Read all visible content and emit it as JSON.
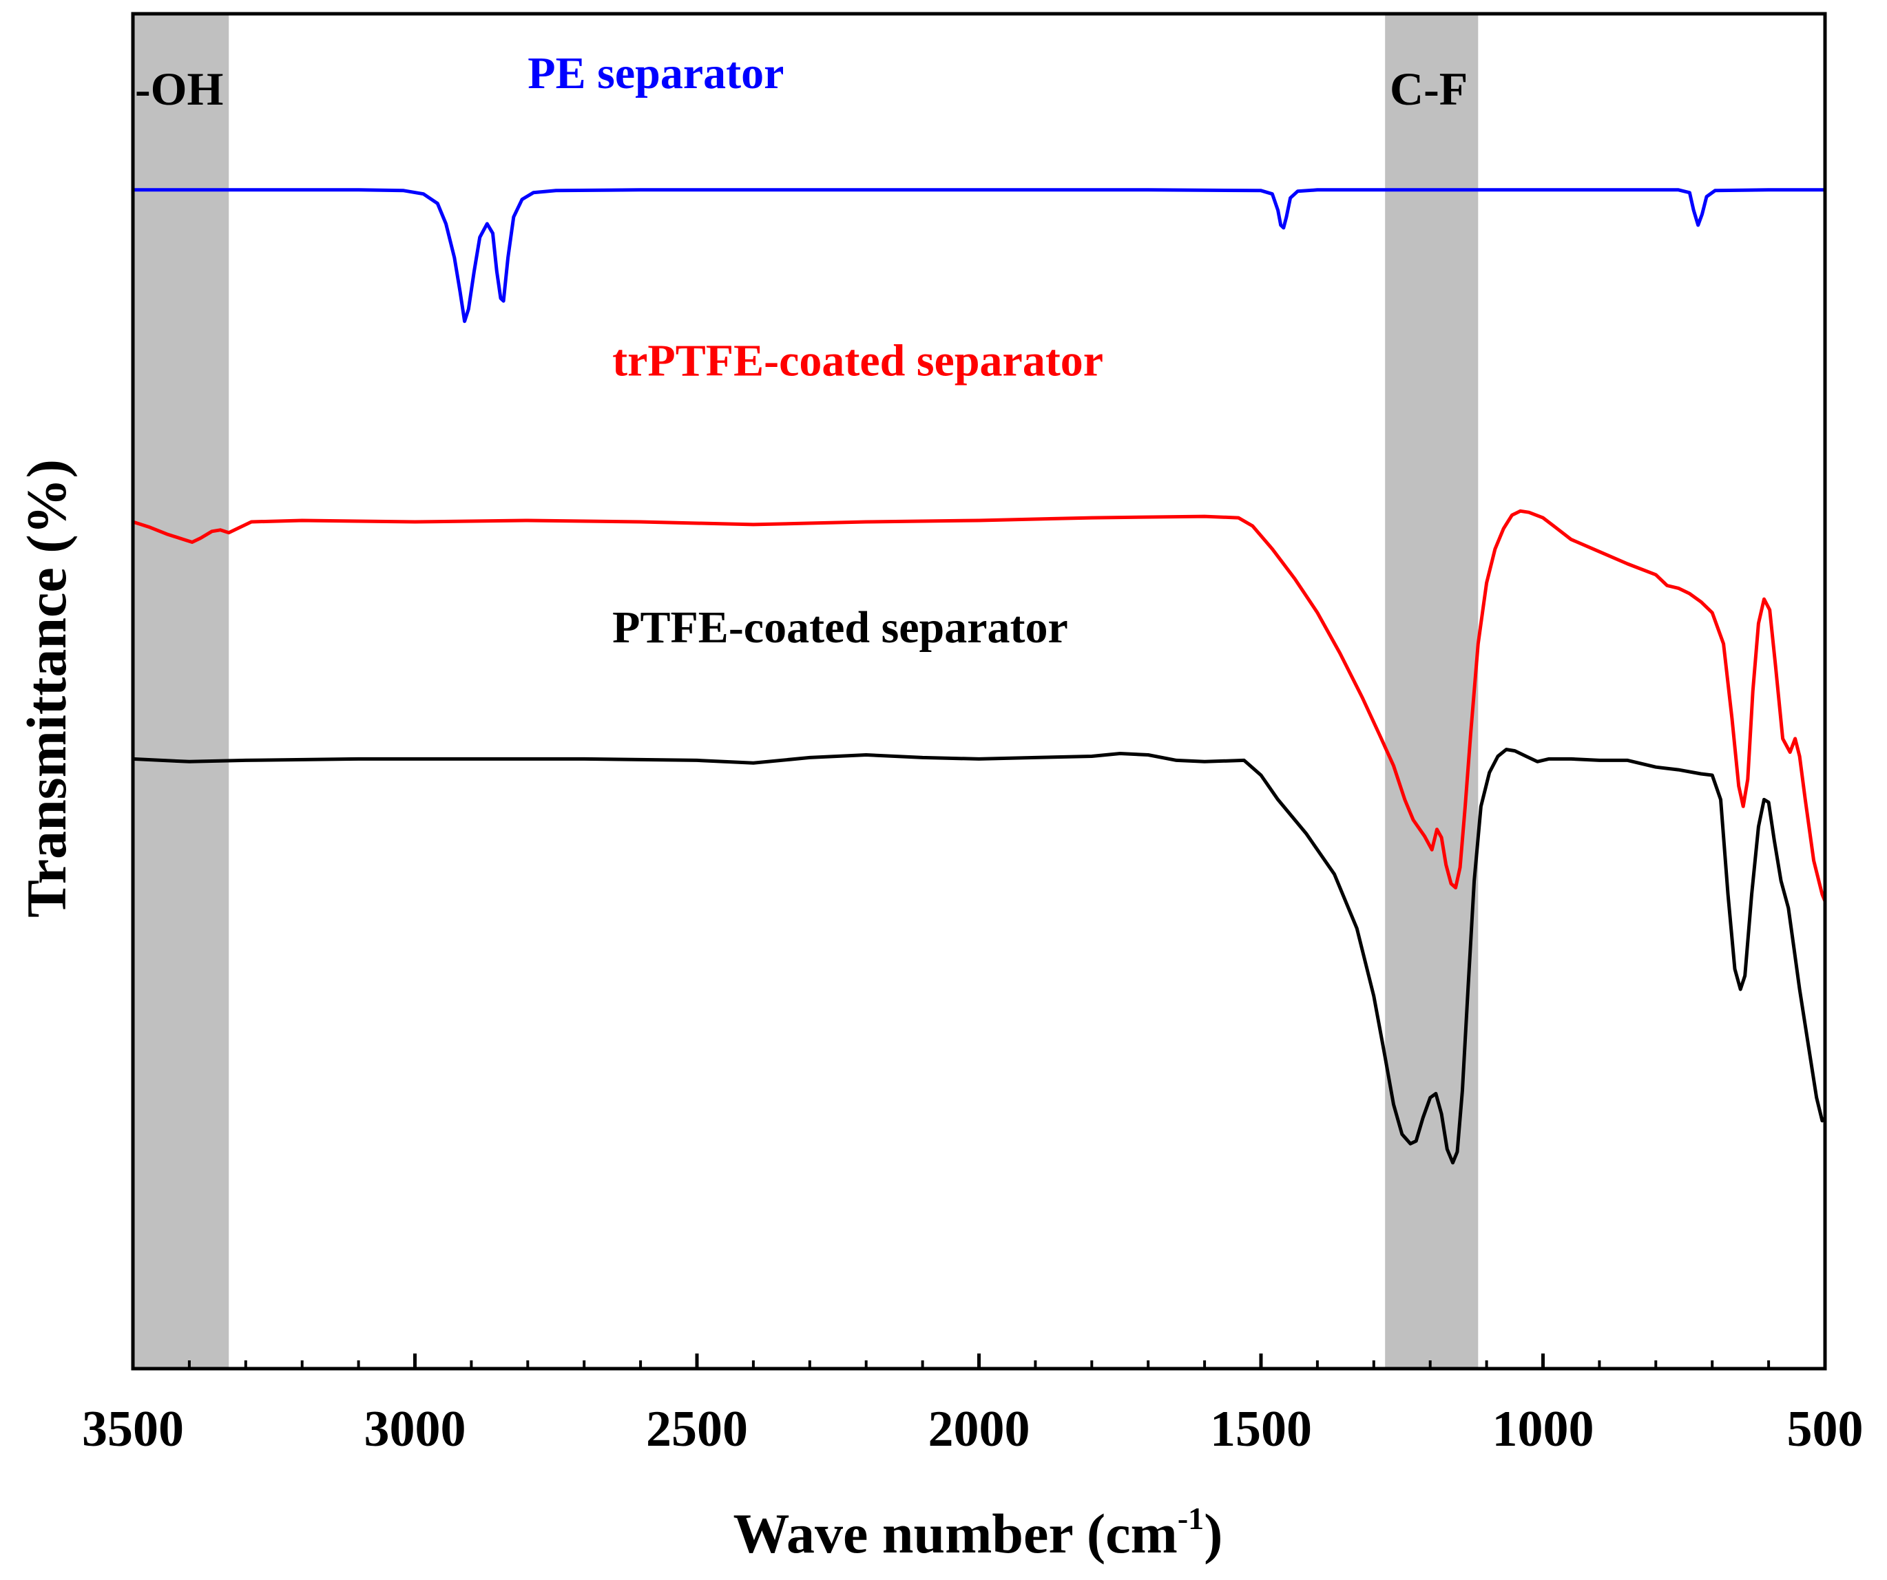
{
  "chart_data": {
    "type": "line",
    "title": "",
    "xlabel": "Wave number (cm",
    "xlabel_superscript": "-1",
    "xlabel_suffix": ")",
    "ylabel": "Transmittance (%)",
    "xlim": [
      3500,
      500
    ],
    "ylim": [
      0,
      100
    ],
    "grid": false,
    "x_ticks": [
      3500,
      3000,
      2500,
      2000,
      1500,
      1000,
      500
    ],
    "x_tick_labels": [
      "3500",
      "3000",
      "2500",
      "2000",
      "1500",
      "1000",
      "500"
    ],
    "bands": [
      {
        "name": "oh-band",
        "label": "-OH",
        "from": 3500,
        "to": 3330,
        "color": "#c0c0c0"
      },
      {
        "name": "cf-band",
        "label": "C-F",
        "from": 1280,
        "to": 1115,
        "color": "#c0c0c0"
      }
    ],
    "series": [
      {
        "name": "PE separator",
        "color": "#0000ff",
        "label_anchor": [
          2800,
          94.5
        ],
        "points": [
          [
            3500,
            87.0
          ],
          [
            3300,
            87.0
          ],
          [
            3100,
            87.0
          ],
          [
            3020,
            86.95
          ],
          [
            2985,
            86.7
          ],
          [
            2960,
            86.0
          ],
          [
            2945,
            84.5
          ],
          [
            2930,
            82.0
          ],
          [
            2920,
            79.5
          ],
          [
            2912,
            77.3
          ],
          [
            2905,
            78.2
          ],
          [
            2895,
            81.0
          ],
          [
            2885,
            83.5
          ],
          [
            2872,
            84.5
          ],
          [
            2862,
            83.8
          ],
          [
            2855,
            81.0
          ],
          [
            2848,
            79.0
          ],
          [
            2843,
            78.8
          ],
          [
            2835,
            82.0
          ],
          [
            2825,
            85.0
          ],
          [
            2810,
            86.3
          ],
          [
            2790,
            86.8
          ],
          [
            2750,
            86.95
          ],
          [
            2600,
            87.0
          ],
          [
            2300,
            87.0
          ],
          [
            2000,
            87.0
          ],
          [
            1700,
            87.0
          ],
          [
            1500,
            86.95
          ],
          [
            1480,
            86.7
          ],
          [
            1470,
            85.5
          ],
          [
            1465,
            84.4
          ],
          [
            1460,
            84.2
          ],
          [
            1455,
            85.0
          ],
          [
            1448,
            86.4
          ],
          [
            1435,
            86.9
          ],
          [
            1400,
            87.0
          ],
          [
            1000,
            87.0
          ],
          [
            760,
            87.0
          ],
          [
            740,
            86.8
          ],
          [
            733,
            85.5
          ],
          [
            725,
            84.4
          ],
          [
            718,
            85.2
          ],
          [
            710,
            86.5
          ],
          [
            695,
            86.95
          ],
          [
            600,
            87.0
          ],
          [
            500,
            87.0
          ]
        ]
      },
      {
        "name": "trPTFE-coated separator",
        "color": "#ff0000",
        "label_anchor": [
          2650,
          73.3
        ],
        "points": [
          [
            3500,
            62.5
          ],
          [
            3470,
            62.1
          ],
          [
            3440,
            61.6
          ],
          [
            3410,
            61.2
          ],
          [
            3395,
            61.0
          ],
          [
            3380,
            61.3
          ],
          [
            3360,
            61.8
          ],
          [
            3345,
            61.9
          ],
          [
            3330,
            61.7
          ],
          [
            3310,
            62.1
          ],
          [
            3290,
            62.5
          ],
          [
            3200,
            62.6
          ],
          [
            3000,
            62.5
          ],
          [
            2800,
            62.6
          ],
          [
            2600,
            62.5
          ],
          [
            2400,
            62.3
          ],
          [
            2200,
            62.5
          ],
          [
            2000,
            62.6
          ],
          [
            1800,
            62.8
          ],
          [
            1600,
            62.9
          ],
          [
            1540,
            62.8
          ],
          [
            1515,
            62.2
          ],
          [
            1480,
            60.5
          ],
          [
            1440,
            58.3
          ],
          [
            1400,
            55.8
          ],
          [
            1360,
            52.8
          ],
          [
            1320,
            49.5
          ],
          [
            1290,
            46.8
          ],
          [
            1265,
            44.5
          ],
          [
            1245,
            42.0
          ],
          [
            1230,
            40.5
          ],
          [
            1210,
            39.3
          ],
          [
            1197,
            38.3
          ],
          [
            1188,
            39.8
          ],
          [
            1180,
            39.2
          ],
          [
            1172,
            37.2
          ],
          [
            1163,
            35.8
          ],
          [
            1155,
            35.5
          ],
          [
            1147,
            37.0
          ],
          [
            1138,
            41.5
          ],
          [
            1128,
            47.0
          ],
          [
            1115,
            53.5
          ],
          [
            1100,
            58.0
          ],
          [
            1085,
            60.5
          ],
          [
            1070,
            62.0
          ],
          [
            1055,
            63.0
          ],
          [
            1040,
            63.3
          ],
          [
            1025,
            63.2
          ],
          [
            1000,
            62.8
          ],
          [
            975,
            62.0
          ],
          [
            950,
            61.2
          ],
          [
            900,
            60.3
          ],
          [
            850,
            59.4
          ],
          [
            800,
            58.6
          ],
          [
            780,
            57.8
          ],
          [
            760,
            57.6
          ],
          [
            740,
            57.2
          ],
          [
            720,
            56.6
          ],
          [
            700,
            55.8
          ],
          [
            680,
            53.5
          ],
          [
            665,
            48.0
          ],
          [
            653,
            43.0
          ],
          [
            645,
            41.5
          ],
          [
            637,
            43.5
          ],
          [
            628,
            50.0
          ],
          [
            618,
            55.0
          ],
          [
            608,
            56.8
          ],
          [
            598,
            56.0
          ],
          [
            588,
            52.0
          ],
          [
            575,
            46.5
          ],
          [
            562,
            45.5
          ],
          [
            553,
            46.5
          ],
          [
            545,
            45.2
          ],
          [
            535,
            42.0
          ],
          [
            520,
            37.5
          ],
          [
            505,
            35.0
          ],
          [
            500,
            34.5
          ]
        ]
      },
      {
        "name": "PTFE-coated separator",
        "color": "#000000",
        "label_anchor": [
          2650,
          53.6
        ],
        "points": [
          [
            3500,
            45.0
          ],
          [
            3450,
            44.9
          ],
          [
            3400,
            44.8
          ],
          [
            3300,
            44.9
          ],
          [
            3100,
            45.0
          ],
          [
            2900,
            45.0
          ],
          [
            2700,
            45.0
          ],
          [
            2500,
            44.9
          ],
          [
            2400,
            44.7
          ],
          [
            2300,
            45.1
          ],
          [
            2200,
            45.3
          ],
          [
            2100,
            45.1
          ],
          [
            2000,
            45.0
          ],
          [
            1900,
            45.1
          ],
          [
            1800,
            45.2
          ],
          [
            1750,
            45.4
          ],
          [
            1700,
            45.3
          ],
          [
            1650,
            44.9
          ],
          [
            1600,
            44.8
          ],
          [
            1530,
            44.9
          ],
          [
            1500,
            43.8
          ],
          [
            1470,
            42.0
          ],
          [
            1420,
            39.5
          ],
          [
            1370,
            36.5
          ],
          [
            1330,
            32.5
          ],
          [
            1300,
            27.5
          ],
          [
            1280,
            23.0
          ],
          [
            1265,
            19.5
          ],
          [
            1250,
            17.3
          ],
          [
            1235,
            16.6
          ],
          [
            1225,
            16.8
          ],
          [
            1213,
            18.5
          ],
          [
            1200,
            20.0
          ],
          [
            1190,
            20.3
          ],
          [
            1180,
            18.8
          ],
          [
            1170,
            16.2
          ],
          [
            1160,
            15.2
          ],
          [
            1152,
            16.0
          ],
          [
            1143,
            20.5
          ],
          [
            1133,
            28.0
          ],
          [
            1122,
            36.0
          ],
          [
            1110,
            41.5
          ],
          [
            1095,
            44.0
          ],
          [
            1080,
            45.2
          ],
          [
            1065,
            45.7
          ],
          [
            1050,
            45.6
          ],
          [
            1030,
            45.2
          ],
          [
            1010,
            44.8
          ],
          [
            990,
            45.0
          ],
          [
            950,
            45.0
          ],
          [
            900,
            44.9
          ],
          [
            850,
            44.9
          ],
          [
            800,
            44.4
          ],
          [
            760,
            44.2
          ],
          [
            720,
            43.9
          ],
          [
            700,
            43.8
          ],
          [
            685,
            42.0
          ],
          [
            672,
            35.0
          ],
          [
            660,
            29.5
          ],
          [
            650,
            28.0
          ],
          [
            642,
            29.0
          ],
          [
            630,
            35.0
          ],
          [
            618,
            40.0
          ],
          [
            608,
            42.0
          ],
          [
            600,
            41.8
          ],
          [
            590,
            39.0
          ],
          [
            578,
            36.0
          ],
          [
            565,
            34.0
          ],
          [
            555,
            31.0
          ],
          [
            545,
            28.0
          ],
          [
            530,
            24.0
          ],
          [
            515,
            20.0
          ],
          [
            505,
            18.3
          ],
          [
            500,
            18.5
          ]
        ]
      }
    ]
  }
}
